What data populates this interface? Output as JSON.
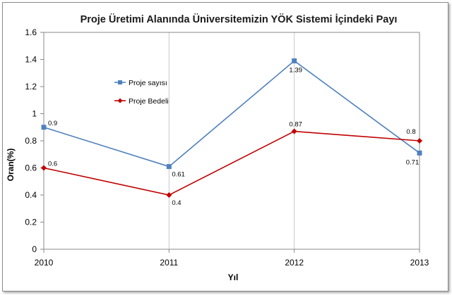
{
  "chart_data": {
    "type": "line",
    "title": "Proje Üretimi Alanında Üniversitemizin YÖK Sistemi İçindeki Payı",
    "xlabel": "Yıl",
    "ylabel": "Oran(%)",
    "x": [
      "2010",
      "2011",
      "2012",
      "2013"
    ],
    "ylim": [
      0,
      1.6
    ],
    "yticks": [
      "0",
      "0.2",
      "0.4",
      "0.6",
      "0.8",
      "1",
      "1.2",
      "1.4",
      "1.6"
    ],
    "grid": "vertical",
    "legend_position": "upper-left inside",
    "series": [
      {
        "name": "Proje sayısı",
        "values": [
          0.9,
          0.61,
          1.39,
          0.71
        ],
        "labels": [
          "0.9",
          "0.61",
          "1.39",
          "0.71"
        ],
        "color": "#4f81bd",
        "marker": "square"
      },
      {
        "name": "Proje Bedeli",
        "values": [
          0.6,
          0.4,
          0.87,
          0.8
        ],
        "labels": [
          "0.6",
          "0.4",
          "0.87",
          "0.8"
        ],
        "color": "#c00000",
        "marker": "diamond"
      }
    ]
  }
}
